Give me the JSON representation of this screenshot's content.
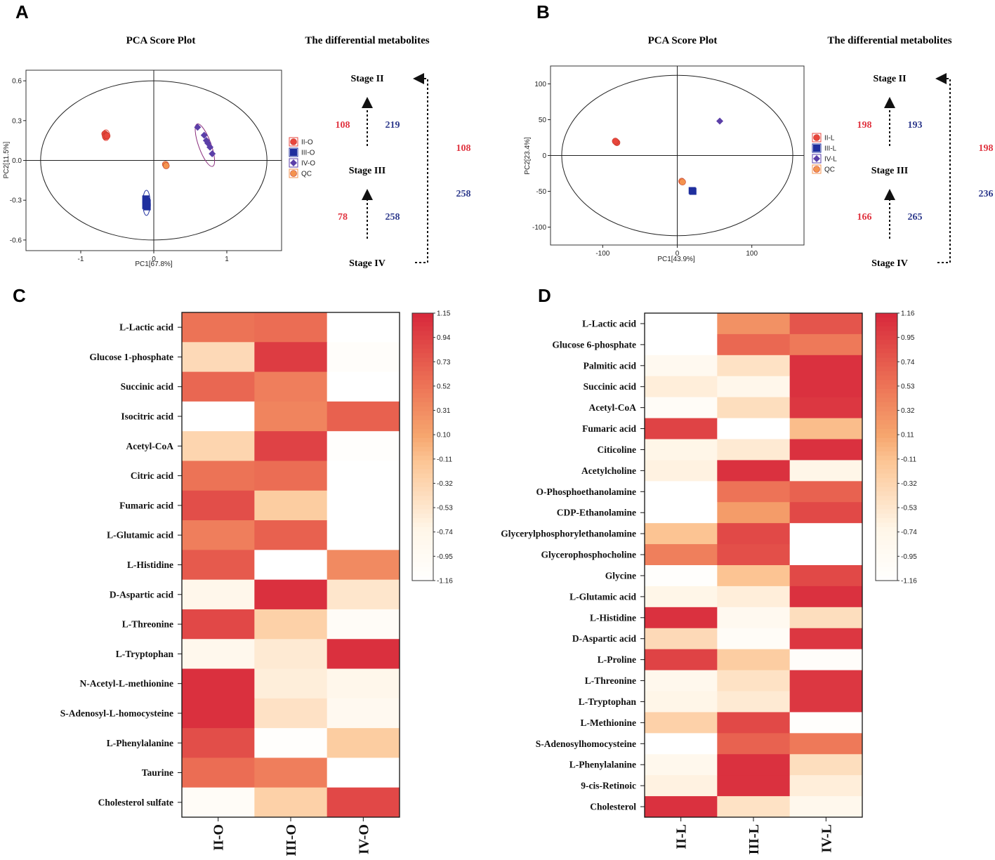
{
  "panels": {
    "A": {
      "letter": "A",
      "pca_title": "PCA Score Plot",
      "diff_title": "The differential metabolites"
    },
    "B": {
      "letter": "B",
      "pca_title": "PCA Score Plot",
      "diff_title": "The differential metabolites"
    },
    "C": {
      "letter": "C"
    },
    "D": {
      "letter": "D"
    }
  },
  "colors": {
    "II": "#e8463c",
    "III": "#1f2f9e",
    "IV": "#5b3fa8",
    "QC": "#f4934f",
    "ellipse_II": "#e8463c",
    "ellipse_III": "#1f2f9e",
    "ellipse_IV": "#8b2f7e",
    "red": "#e0333f",
    "blue": "#2e3a8c"
  },
  "chart_data": [
    {
      "panel": "A",
      "type": "scatter",
      "title": "PCA Score Plot",
      "xlabel": "PC1[67.8%]",
      "ylabel": "PC2[11.5%]",
      "xlim": [
        -1.75,
        1.75
      ],
      "ylim": [
        -0.68,
        0.68
      ],
      "xticks": [
        -1,
        0,
        1
      ],
      "xtick_labels": [
        "-1",
        "0",
        "1"
      ],
      "yticks": [
        0.6,
        0.3,
        0.0,
        -0.3,
        -0.6
      ],
      "ytick_labels": [
        "0.6",
        "0.3",
        "0.0",
        "-0.3",
        "-0.6"
      ],
      "legend": [
        "II-O",
        "III-O",
        "IV-O",
        "QC"
      ],
      "series": [
        {
          "name": "II-O",
          "marker": "circle",
          "points": [
            [
              -0.67,
              0.2
            ],
            [
              -0.65,
              0.19
            ],
            [
              -0.66,
              0.18
            ],
            [
              -0.64,
              0.185
            ]
          ],
          "ellipse": {
            "cx": -0.655,
            "cy": 0.19,
            "rx": 0.05,
            "ry": 0.04,
            "angle": 0
          }
        },
        {
          "name": "III-O",
          "marker": "square",
          "points": [
            [
              -0.11,
              -0.29
            ],
            [
              -0.1,
              -0.31
            ],
            [
              -0.1,
              -0.33
            ],
            [
              -0.09,
              -0.35
            ],
            [
              -0.11,
              -0.34
            ],
            [
              -0.09,
              -0.32
            ]
          ],
          "ellipse": {
            "cx": -0.1,
            "cy": -0.32,
            "rx": 0.05,
            "ry": 0.095,
            "angle": 0
          }
        },
        {
          "name": "IV-O",
          "marker": "diamond",
          "points": [
            [
              0.6,
              0.25
            ],
            [
              0.69,
              0.19
            ],
            [
              0.72,
              0.15
            ],
            [
              0.74,
              0.13
            ],
            [
              0.77,
              0.1
            ],
            [
              0.8,
              0.05
            ]
          ],
          "ellipse": {
            "cx": 0.7,
            "cy": 0.115,
            "rx": 0.085,
            "ry": 0.17,
            "angle": -20
          }
        },
        {
          "name": "QC",
          "marker": "circle",
          "points": [
            [
              0.16,
              -0.03
            ],
            [
              0.17,
              -0.04
            ]
          ],
          "ellipse": null
        }
      ],
      "hotelling_ellipse": {
        "cx": 0,
        "cy": 0,
        "rx": 1.55,
        "ry": 0.6
      }
    },
    {
      "panel": "B",
      "type": "scatter",
      "title": "PCA Score Plot",
      "xlabel": "PC1[43.9%]",
      "ylabel": "PC2[23.4%]",
      "xlim": [
        -170,
        170
      ],
      "ylim": [
        -125,
        125
      ],
      "xticks": [
        -100,
        0,
        100
      ],
      "xtick_labels": [
        "-100",
        "0",
        "100"
      ],
      "yticks": [
        100,
        50,
        0,
        -50,
        -100
      ],
      "ytick_labels": [
        "100",
        "50",
        "0",
        "-50",
        "-100"
      ],
      "legend": [
        "II-L",
        "III-L",
        "IV-L",
        "QC"
      ],
      "series": [
        {
          "name": "II-L",
          "marker": "circle",
          "points": [
            [
              -82,
              19
            ],
            [
              -81,
              18
            ],
            [
              -83,
              20
            ]
          ],
          "ellipse": {
            "cx": -82,
            "cy": 19,
            "rx": 4,
            "ry": 4,
            "angle": 0
          }
        },
        {
          "name": "III-L",
          "marker": "square",
          "points": [
            [
              20,
              -49
            ],
            [
              21,
              -50
            ]
          ],
          "ellipse": null
        },
        {
          "name": "IV-L",
          "marker": "diamond",
          "points": [
            [
              57,
              48
            ]
          ],
          "ellipse": null
        },
        {
          "name": "QC",
          "marker": "circle",
          "points": [
            [
              6,
              -36
            ],
            [
              7,
              -37
            ]
          ],
          "ellipse": null
        }
      ],
      "hotelling_ellipse": {
        "cx": 0,
        "cy": 0,
        "rx": 155,
        "ry": 112
      }
    },
    {
      "panel": "C",
      "type": "heatmap",
      "columns": [
        "II-O",
        "III-O",
        "IV-O"
      ],
      "rows": [
        "L-Lactic acid",
        "Glucose 1-phosphate",
        "Succinic acid",
        "Isocitric acid",
        "Acetyl-CoA",
        "Citric acid",
        "Fumaric acid",
        "L-Glutamic acid",
        "L-Histidine",
        "D-Aspartic acid",
        "L-Threonine",
        "L-Tryptophan",
        "N-Acetyl-L-methionine",
        "S-Adenosyl-L-homocysteine",
        "L-Phenylalanine",
        "Taurine",
        "Cholesterol sulfate"
      ],
      "values": [
        [
          0.55,
          0.6,
          -1.16
        ],
        [
          -0.35,
          1.0,
          -1.05
        ],
        [
          0.65,
          0.45,
          -1.16
        ],
        [
          -1.16,
          0.4,
          0.7
        ],
        [
          -0.3,
          0.95,
          -1.1
        ],
        [
          0.55,
          0.6,
          -1.16
        ],
        [
          0.85,
          -0.2,
          -1.16
        ],
        [
          0.45,
          0.7,
          -1.16
        ],
        [
          0.75,
          -1.16,
          0.35
        ],
        [
          -0.75,
          1.1,
          -0.5
        ],
        [
          0.9,
          -0.25,
          -1.0
        ],
        [
          -0.8,
          -0.55,
          1.1
        ],
        [
          1.1,
          -0.6,
          -0.75
        ],
        [
          1.1,
          -0.45,
          -0.85
        ],
        [
          0.85,
          -1.1,
          -0.2
        ],
        [
          0.6,
          0.45,
          -1.16
        ],
        [
          -1.0,
          -0.25,
          0.9
        ]
      ],
      "colorbar": {
        "min": -1.16,
        "max": 1.15,
        "tick_labels": [
          "1.15",
          "0.94",
          "0.73",
          "0.52",
          "0.31",
          "0.10",
          "-0.11",
          "-0.32",
          "-0.53",
          "-0.74",
          "-0.95",
          "-1.16"
        ]
      }
    },
    {
      "panel": "D",
      "type": "heatmap",
      "columns": [
        "II-L",
        "III-L",
        "IV-L"
      ],
      "rows": [
        "L-Lactic acid",
        "Glucose 6-phosphate",
        "Palmitic acid",
        "Succinic acid",
        "Acetyl-CoA",
        "Fumaric acid",
        "Citicoline",
        "Acetylcholine",
        "O-Phosphoethanolamine",
        "CDP-Ethanolamine",
        "Glycerylphosphorylethanolamine",
        "Glycerophosphocholine",
        "Glycine",
        "L-Glutamic acid",
        "L-Histidine",
        "D-Aspartic acid",
        "L-Proline",
        "L-Threonine",
        "L-Tryptophan",
        "L-Methionine",
        "S-Adenosylhomocysteine",
        "L-Phenylalanine",
        "9-cis-Retinoic",
        "Cholesterol"
      ],
      "values": [
        [
          -1.16,
          0.3,
          0.8
        ],
        [
          -1.16,
          0.65,
          0.5
        ],
        [
          -0.85,
          -0.45,
          1.1
        ],
        [
          -0.6,
          -0.75,
          1.1
        ],
        [
          -1.0,
          -0.4,
          1.05
        ],
        [
          0.95,
          -1.16,
          -0.05
        ],
        [
          -0.7,
          -0.55,
          1.1
        ],
        [
          -0.65,
          1.1,
          -0.7
        ],
        [
          -1.16,
          0.55,
          0.7
        ],
        [
          -1.16,
          0.2,
          0.9
        ],
        [
          -0.1,
          0.9,
          -1.16
        ],
        [
          0.45,
          0.85,
          -1.16
        ],
        [
          -1.1,
          -0.1,
          0.9
        ],
        [
          -0.7,
          -0.6,
          1.1
        ],
        [
          1.1,
          -0.85,
          -0.4
        ],
        [
          -0.35,
          -1.0,
          1.05
        ],
        [
          0.95,
          -0.2,
          -1.05
        ],
        [
          -0.8,
          -0.45,
          1.05
        ],
        [
          -0.7,
          -0.55,
          1.05
        ],
        [
          -0.25,
          0.9,
          -1.1
        ],
        [
          -1.16,
          0.7,
          0.5
        ],
        [
          -0.8,
          1.1,
          -0.4
        ],
        [
          -0.65,
          1.1,
          -0.6
        ],
        [
          1.1,
          -0.45,
          -0.8
        ]
      ],
      "colorbar": {
        "min": -1.16,
        "max": 1.16,
        "tick_labels": [
          "1.16",
          "0.95",
          "0.74",
          "0.53",
          "0.32",
          "0.11",
          "-0.11",
          "-0.32",
          "-0.53",
          "-0.74",
          "-0.95",
          "-1.16"
        ]
      }
    }
  ],
  "flow": {
    "A": {
      "stage_top": "Stage II",
      "stage_mid": "Stage III",
      "stage_bot": "Stage IV",
      "up_red_1": "108",
      "up_blue_1": "219",
      "up_red_2": "78",
      "up_blue_2": "258",
      "side_red": "108",
      "side_blue": "258"
    },
    "B": {
      "stage_top": "Stage II",
      "stage_mid": "Stage III",
      "stage_bot": "Stage IV",
      "up_red_1": "198",
      "up_blue_1": "193",
      "up_red_2": "166",
      "up_blue_2": "265",
      "side_red": "198",
      "side_blue": "236"
    }
  }
}
